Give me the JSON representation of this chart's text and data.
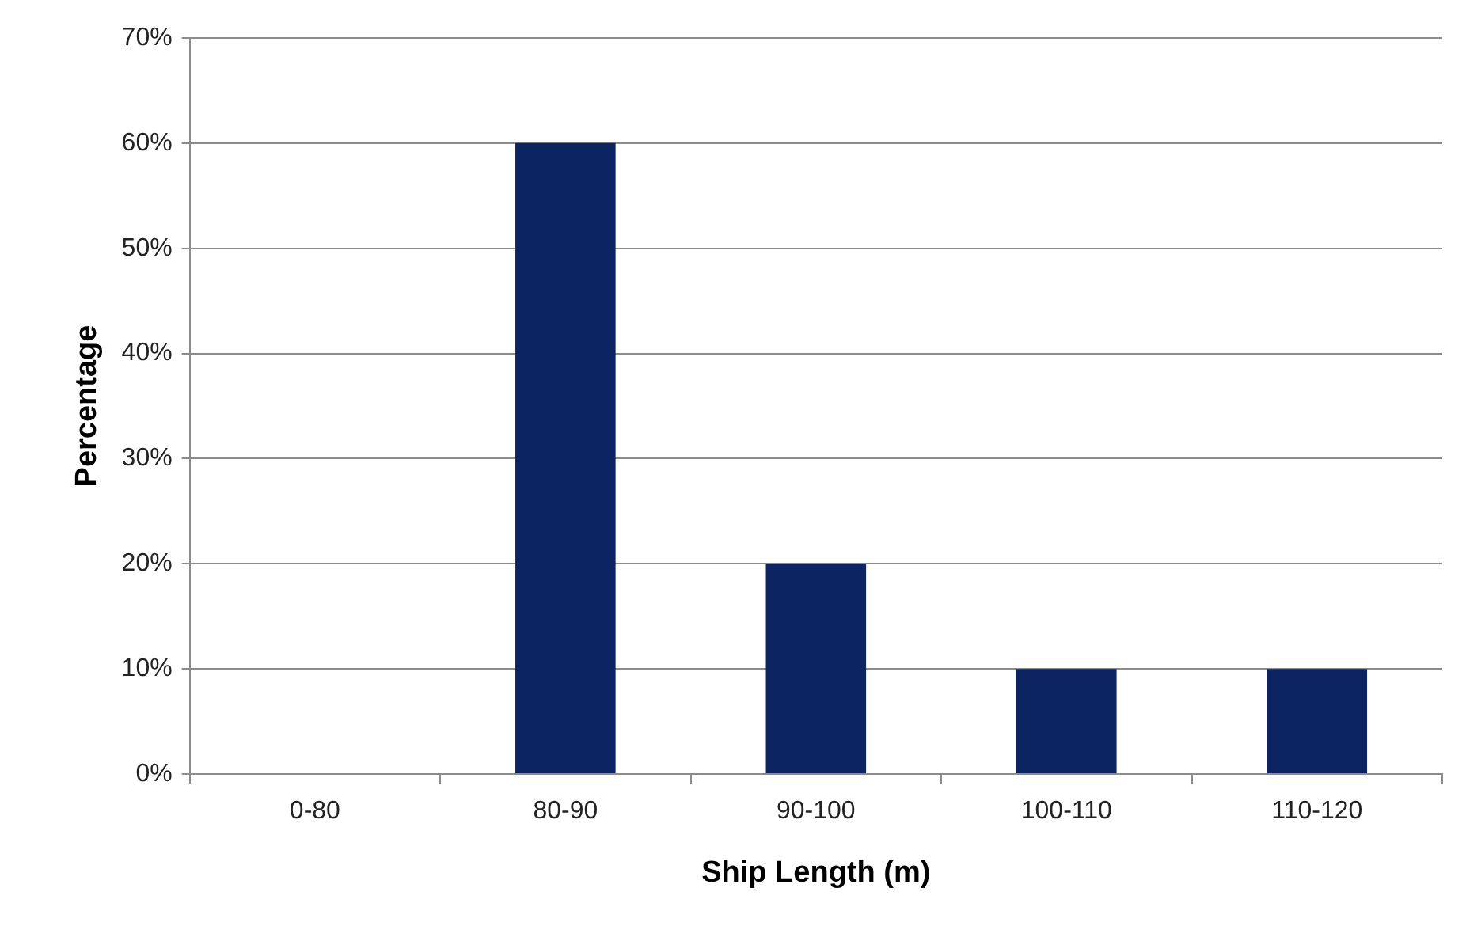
{
  "chart_data": {
    "type": "bar",
    "xlabel": "Ship Length (m)",
    "ylabel": "Percentage",
    "categories": [
      "0-80",
      "80-90",
      "90-100",
      "100-110",
      "110-120"
    ],
    "values": [
      0,
      60,
      20,
      10,
      10
    ],
    "color": "#0c2461",
    "ylim": [
      0,
      70
    ],
    "yticks": [
      {
        "value": 0,
        "label": "0%"
      },
      {
        "value": 10,
        "label": "10%"
      },
      {
        "value": 20,
        "label": "20%"
      },
      {
        "value": 30,
        "label": "30%"
      },
      {
        "value": 40,
        "label": "40%"
      },
      {
        "value": 50,
        "label": "50%"
      },
      {
        "value": 60,
        "label": "60%"
      },
      {
        "value": 70,
        "label": "70%"
      }
    ],
    "grid": "y"
  }
}
